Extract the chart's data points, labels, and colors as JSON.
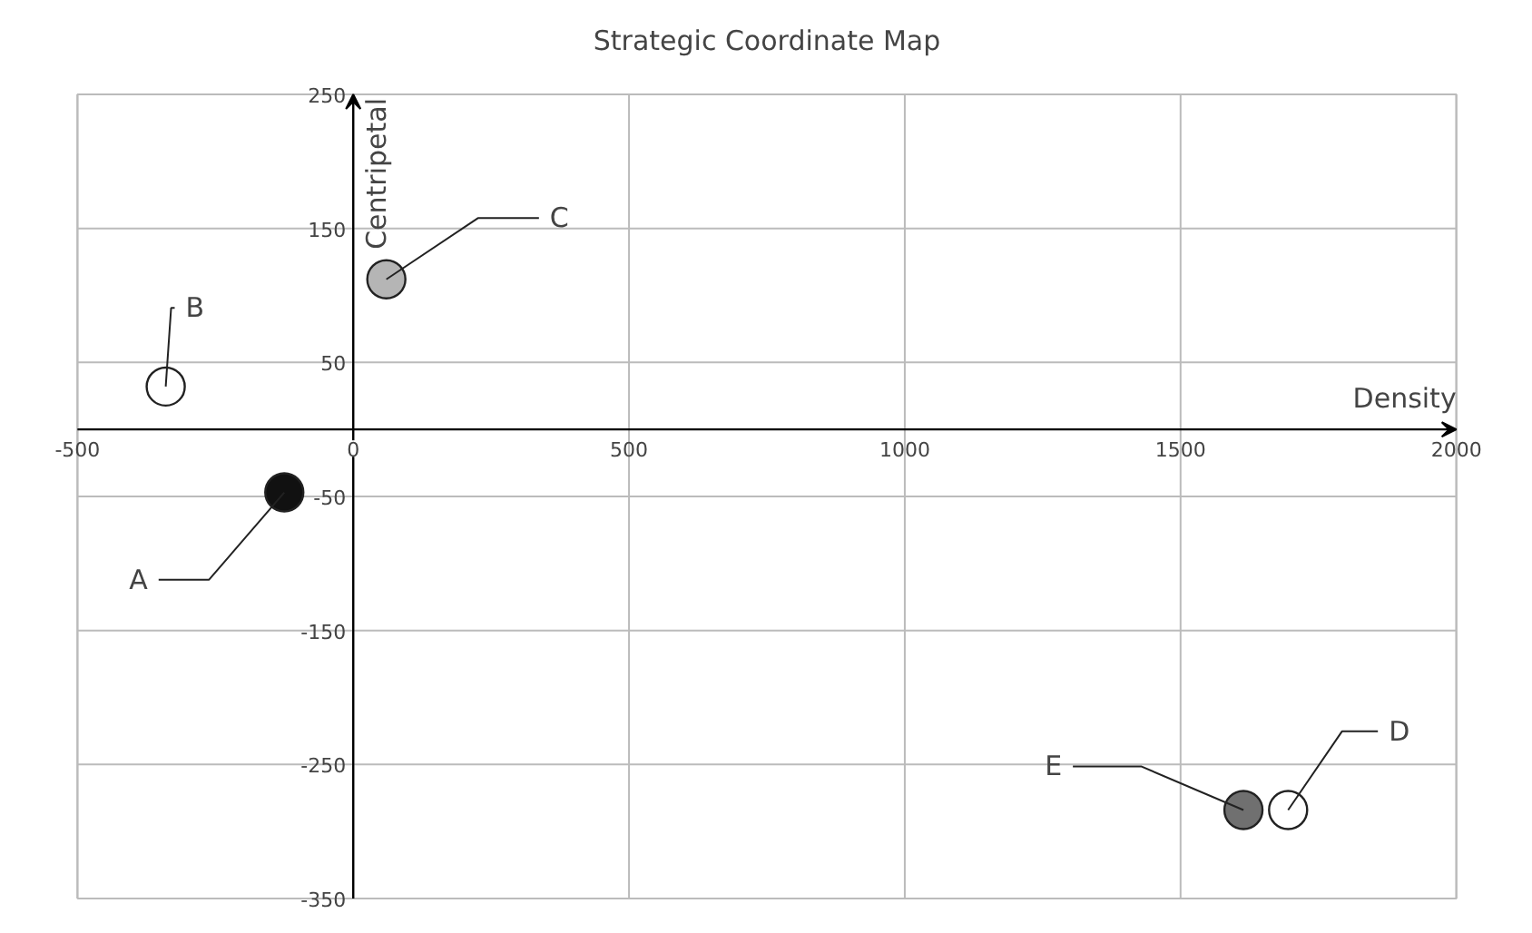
{
  "chart_data": {
    "type": "scatter",
    "title": "Strategic Coordinate Map",
    "xlabel": "Density",
    "ylabel": "Centripetal",
    "x": [
      -125,
      -340,
      60,
      1695,
      1614
    ],
    "values": [
      -47,
      32,
      112,
      -284,
      -284
    ],
    "colors": [
      "#111111",
      "#ffffff",
      "#b5b5b5",
      "#ffffff",
      "#707070"
    ],
    "value_labels": [
      "A",
      "B",
      "C",
      "D",
      "E"
    ],
    "xlim": [
      -500,
      2000
    ],
    "ylim": [
      -350,
      250
    ],
    "xticks": [
      -500,
      0,
      500,
      1000,
      1500,
      2000
    ],
    "yticks": [
      -350,
      -250,
      -150,
      -50,
      50,
      150,
      250
    ],
    "grid": true,
    "marker": "circle",
    "legend": false
  }
}
